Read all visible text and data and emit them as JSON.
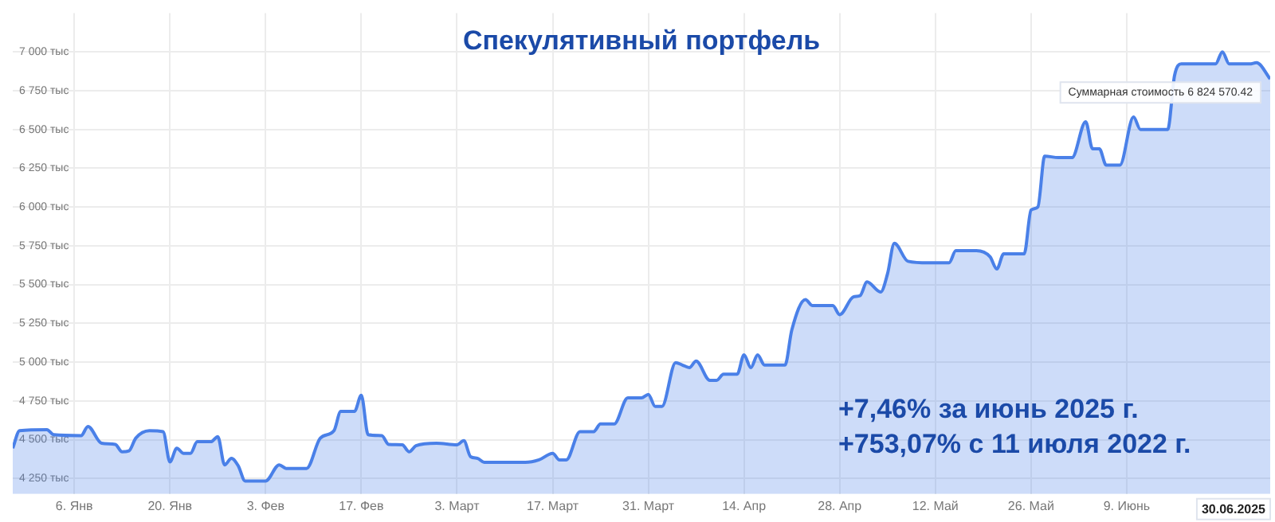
{
  "chart_data": {
    "type": "area",
    "title": "Спекулятивный портфель",
    "x": [
      "2024-12-28",
      "2024-12-29",
      "2025-01-02",
      "2025-01-03",
      "2025-01-07",
      "2025-01-08",
      "2025-01-10",
      "2025-01-12",
      "2025-01-13",
      "2025-01-14",
      "2025-01-15",
      "2025-01-17",
      "2025-01-19",
      "2025-01-20",
      "2025-01-21",
      "2025-01-22",
      "2025-01-23",
      "2025-01-24",
      "2025-01-26",
      "2025-01-27",
      "2025-01-28",
      "2025-01-29",
      "2025-01-30",
      "2025-01-31",
      "2025-02-03",
      "2025-02-05",
      "2025-02-06",
      "2025-02-09",
      "2025-02-11",
      "2025-02-13",
      "2025-02-14",
      "2025-02-16",
      "2025-02-17",
      "2025-02-18",
      "2025-02-20",
      "2025-02-21",
      "2025-02-23",
      "2025-02-24",
      "2025-02-25",
      "2025-02-28",
      "2025-03-03",
      "2025-03-04",
      "2025-03-05",
      "2025-03-06",
      "2025-03-07",
      "2025-03-13",
      "2025-03-15",
      "2025-03-17",
      "2025-03-18",
      "2025-03-19",
      "2025-03-21",
      "2025-03-23",
      "2025-03-24",
      "2025-03-26",
      "2025-03-28",
      "2025-03-30",
      "2025-03-31",
      "2025-04-01",
      "2025-04-02",
      "2025-04-04",
      "2025-04-05",
      "2025-04-06",
      "2025-04-07",
      "2025-04-09",
      "2025-04-10",
      "2025-04-11",
      "2025-04-13",
      "2025-04-14",
      "2025-04-15",
      "2025-04-16",
      "2025-04-17",
      "2025-04-20",
      "2025-04-21",
      "2025-04-23",
      "2025-04-24",
      "2025-04-27",
      "2025-04-28",
      "2025-04-30",
      "2025-05-01",
      "2025-05-02",
      "2025-05-04",
      "2025-05-05",
      "2025-05-06",
      "2025-05-08",
      "2025-05-11",
      "2025-05-14",
      "2025-05-15",
      "2025-05-18",
      "2025-05-20",
      "2025-05-21",
      "2025-05-22",
      "2025-05-25",
      "2025-05-26",
      "2025-05-27",
      "2025-05-28",
      "2025-05-30",
      "2025-06-01",
      "2025-06-03",
      "2025-06-04",
      "2025-06-05",
      "2025-06-06",
      "2025-06-08",
      "2025-06-10",
      "2025-06-11",
      "2025-06-15",
      "2025-06-16",
      "2025-06-17",
      "2025-06-22",
      "2025-06-23",
      "2025-06-24",
      "2025-06-27",
      "2025-06-28",
      "2025-06-30"
    ],
    "series": [
      {
        "color": "#4a80e8",
        "values": [
          4445,
          4558,
          4565,
          4532,
          4526,
          4585,
          4477,
          4470,
          4422,
          4428,
          4510,
          4558,
          4552,
          4357,
          4445,
          4412,
          4412,
          4487,
          4487,
          4520,
          4338,
          4380,
          4331,
          4234,
          4234,
          4338,
          4315,
          4315,
          4510,
          4558,
          4682,
          4682,
          4786,
          4532,
          4526,
          4470,
          4467,
          4422,
          4461,
          4477,
          4467,
          4494,
          4390,
          4380,
          4354,
          4354,
          4370,
          4412,
          4370,
          4370,
          4552,
          4552,
          4601,
          4601,
          4770,
          4770,
          4792,
          4715,
          4715,
          4997,
          4981,
          4965,
          5007,
          4883,
          4883,
          4922,
          4922,
          5046,
          4965,
          5046,
          4981,
          4981,
          5208,
          5403,
          5364,
          5364,
          5306,
          5420,
          5429,
          5517,
          5452,
          5569,
          5766,
          5650,
          5640,
          5640,
          5718,
          5718,
          5679,
          5600,
          5698,
          5698,
          5980,
          6000,
          6328,
          6318,
          6318,
          6550,
          6375,
          6375,
          6270,
          6270,
          6580,
          6500,
          6500,
          6847,
          6922,
          6922,
          7000,
          6922,
          6922,
          6930,
          6825
        ]
      }
    ],
    "xlim": [
      "2024-12-28",
      "2025-06-30"
    ],
    "xticks": [
      {
        "value": "2025-01-06",
        "label": "6. Янв"
      },
      {
        "value": "2025-01-20",
        "label": "20. Янв"
      },
      {
        "value": "2025-02-03",
        "label": "3. Фев"
      },
      {
        "value": "2025-02-17",
        "label": "17. Фев"
      },
      {
        "value": "2025-03-03",
        "label": "3. Март"
      },
      {
        "value": "2025-03-17",
        "label": "17. Март"
      },
      {
        "value": "2025-03-31",
        "label": "31. Март"
      },
      {
        "value": "2025-04-14",
        "label": "14. Апр"
      },
      {
        "value": "2025-04-28",
        "label": "28. Апр"
      },
      {
        "value": "2025-05-12",
        "label": "12. Май"
      },
      {
        "value": "2025-05-26",
        "label": "26. Май"
      },
      {
        "value": "2025-06-09",
        "label": "9. Июнь"
      }
    ],
    "ylim": [
      4150,
      7250
    ],
    "yticks": [
      {
        "value": 4250,
        "label": "4 250 тыс"
      },
      {
        "value": 4500,
        "label": "4 500 тыс"
      },
      {
        "value": 4750,
        "label": "4 750 тыс"
      },
      {
        "value": 5000,
        "label": "5 000 тыс"
      },
      {
        "value": 5250,
        "label": "5 250 тыс"
      },
      {
        "value": 5500,
        "label": "5 500 тыс"
      },
      {
        "value": 5750,
        "label": "5 750 тыс"
      },
      {
        "value": 6000,
        "label": "6 000 тыс"
      },
      {
        "value": 6250,
        "label": "6 250 тыс"
      },
      {
        "value": 6500,
        "label": "6 500 тыс"
      },
      {
        "value": 6750,
        "label": "6 750 тыс"
      },
      {
        "value": 7000,
        "label": "7 000 тыс"
      }
    ],
    "grid": true,
    "legend": false,
    "annotations": [
      "+7,46% за июнь 2025 г.",
      "+753,07% с 11 июля 2022 г.",
      {
        "text": "Суммарная стоимость 6 824 570.42",
        "x": "2025-06-30",
        "y": 6824.57
      },
      "30.06.2025"
    ]
  }
}
